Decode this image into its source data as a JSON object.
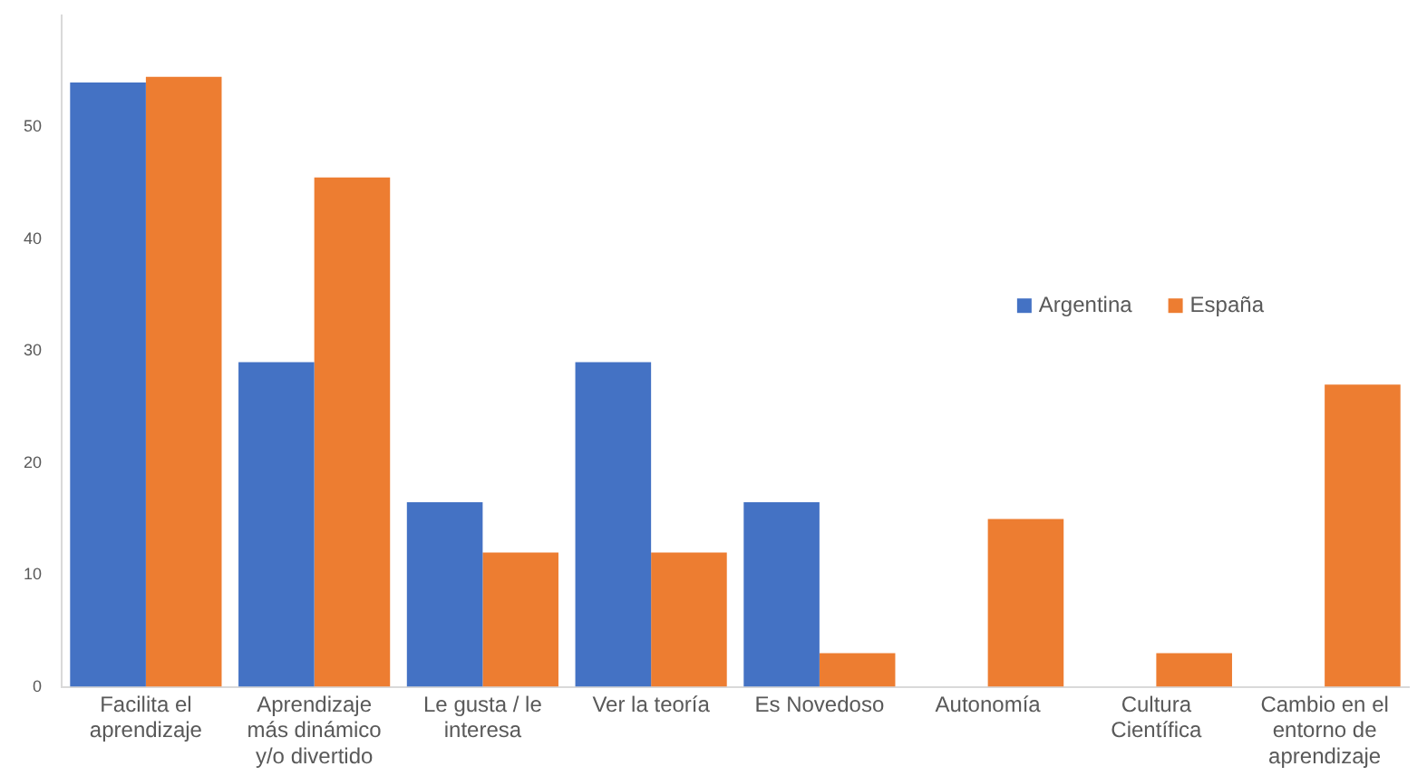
{
  "chart_data": {
    "type": "bar",
    "categories": [
      "Facilita el aprendizaje",
      "Aprendizaje más dinámico y/o divertido",
      "Le gusta / le interesa",
      "Ver la teoría",
      "Es Novedoso",
      "Autonomía",
      "Cultura Científica",
      "Cambio en el entorno de aprendizaje"
    ],
    "series": [
      {
        "name": "Argentina",
        "color": "#4472c4",
        "values": [
          54,
          29,
          16.5,
          29,
          16.5,
          0,
          0,
          0
        ]
      },
      {
        "name": "España",
        "color": "#ed7d31",
        "values": [
          54.5,
          45.5,
          12,
          12,
          3,
          15,
          3,
          27
        ]
      }
    ],
    "ylim": [
      0,
      60
    ],
    "yticks": [
      0,
      10,
      20,
      30,
      40,
      50
    ],
    "grid": false,
    "legend": "right"
  }
}
